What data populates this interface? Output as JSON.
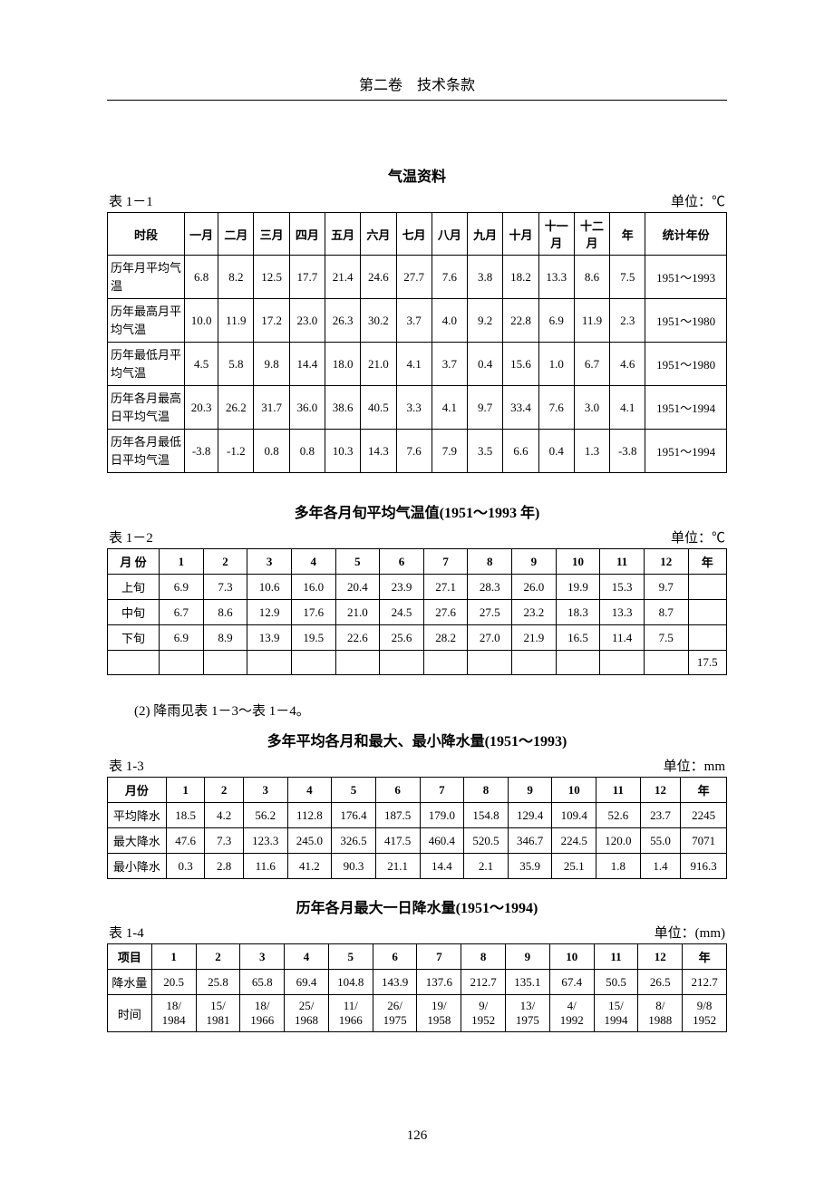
{
  "header": {
    "title": "第二卷　技术条款"
  },
  "page_number": "126",
  "section1": {
    "title": "气温资料",
    "table_label": "表 1－1",
    "unit": "单位：℃",
    "columns": [
      "时段",
      "一月",
      "二月",
      "三月",
      "四月",
      "五月",
      "六月",
      "七月",
      "八月",
      "九月",
      "十月",
      "十一月",
      "十二月",
      "年",
      "统计年份"
    ],
    "rows": [
      {
        "head": "历年月平均气温",
        "cells": [
          "6.8",
          "8.2",
          "12.5",
          "17.7",
          "21.4",
          "24.6",
          "27.7",
          "7.6",
          "3.8",
          "18.2",
          "13.3",
          "8.6",
          "7.5",
          "1951～1993"
        ]
      },
      {
        "head": "历年最高月平均气温",
        "cells": [
          "10.0",
          "11.9",
          "17.2",
          "23.0",
          "26.3",
          "30.2",
          "3.7",
          "4.0",
          "9.2",
          "22.8",
          "6.9",
          "11.9",
          "2.3",
          "1951～1980"
        ]
      },
      {
        "head": "历年最低月平均气温",
        "cells": [
          "4.5",
          "5.8",
          "9.8",
          "14.4",
          "18.0",
          "21.0",
          "4.1",
          "3.7",
          "0.4",
          "15.6",
          "1.0",
          "6.7",
          "4.6",
          "1951～1980"
        ]
      },
      {
        "head": "历年各月最高日平均气温",
        "cells": [
          "20.3",
          "26.2",
          "31.7",
          "36.0",
          "38.6",
          "40.5",
          "3.3",
          "4.1",
          "9.7",
          "33.4",
          "7.6",
          "3.0",
          "4.1",
          "1951～1994"
        ]
      },
      {
        "head": "历年各月最低日平均气温",
        "cells": [
          "-3.8",
          "-1.2",
          "0.8",
          "0.8",
          "10.3",
          "14.3",
          "7.6",
          "7.9",
          "3.5",
          "6.6",
          "0.4",
          "1.3",
          "-3.8",
          "1951～1994"
        ]
      }
    ]
  },
  "section2": {
    "title": "多年各月旬平均气温值(1951～1993 年)",
    "table_label": "表 1－2",
    "unit": "单位：℃",
    "columns": [
      "月 份",
      "1",
      "2",
      "3",
      "4",
      "5",
      "6",
      "7",
      "8",
      "9",
      "10",
      "11",
      "12",
      "年"
    ],
    "rows": [
      {
        "head": "上旬",
        "cells": [
          "6.9",
          "7.3",
          "10.6",
          "16.0",
          "20.4",
          "23.9",
          "27.1",
          "28.3",
          "26.0",
          "19.9",
          "15.3",
          "9.7",
          ""
        ]
      },
      {
        "head": "中旬",
        "cells": [
          "6.7",
          "8.6",
          "12.9",
          "17.6",
          "21.0",
          "24.5",
          "27.6",
          "27.5",
          "23.2",
          "18.3",
          "13.3",
          "8.7",
          ""
        ]
      },
      {
        "head": "下旬",
        "cells": [
          "6.9",
          "8.9",
          "13.9",
          "19.5",
          "22.6",
          "25.6",
          "28.2",
          "27.0",
          "21.9",
          "16.5",
          "11.4",
          "7.5",
          ""
        ]
      },
      {
        "head": "",
        "cells": [
          "",
          "",
          "",
          "",
          "",
          "",
          "",
          "",
          "",
          "",
          "",
          "",
          "17.5"
        ]
      }
    ]
  },
  "body_text": "(2)  降雨见表 1－3～表 1－4。",
  "section3": {
    "title": "多年平均各月和最大、最小降水量(1951～1993)",
    "table_label": "表 1-3",
    "unit": "单位：mm",
    "columns": [
      "月份",
      "1",
      "2",
      "3",
      "4",
      "5",
      "6",
      "7",
      "8",
      "9",
      "10",
      "11",
      "12",
      "年"
    ],
    "rows": [
      {
        "head": "平均降水",
        "cells": [
          "18.5",
          "4.2",
          "56.2",
          "112.8",
          "176.4",
          "187.5",
          "179.0",
          "154.8",
          "129.4",
          "109.4",
          "52.6",
          "23.7",
          "2245"
        ]
      },
      {
        "head": "最大降水",
        "cells": [
          "47.6",
          "7.3",
          "123.3",
          "245.0",
          "326.5",
          "417.5",
          "460.4",
          "520.5",
          "346.7",
          "224.5",
          "120.0",
          "55.0",
          "7071"
        ]
      },
      {
        "head": "最小降水",
        "cells": [
          "0.3",
          "2.8",
          "11.6",
          "41.2",
          "90.3",
          "21.1",
          "14.4",
          "2.1",
          "35.9",
          "25.1",
          "1.8",
          "1.4",
          "916.3"
        ]
      }
    ]
  },
  "section4": {
    "title": "历年各月最大一日降水量(1951～1994)",
    "table_label": "表 1-4",
    "unit": "单位：(mm)",
    "columns": [
      "项目",
      "1",
      "2",
      "3",
      "4",
      "5",
      "6",
      "7",
      "8",
      "9",
      "10",
      "11",
      "12",
      "年"
    ],
    "rows": [
      {
        "head": "降水量",
        "cells": [
          "20.5",
          "25.8",
          "65.8",
          "69.4",
          "104.8",
          "143.9",
          "137.6",
          "212.7",
          "135.1",
          "67.4",
          "50.5",
          "26.5",
          "212.7"
        ]
      },
      {
        "head": "时间",
        "cells": [
          "18/\n1984",
          "15/\n1981",
          "18/\n1966",
          "25/\n1968",
          "11/\n1966",
          "26/\n1975",
          "19/\n1958",
          "9/\n1952",
          "13/\n1975",
          "4/\n1992",
          "15/\n1994",
          "8/\n1988",
          "9/8\n1952"
        ]
      }
    ]
  },
  "style": {
    "t1_col_widths": [
      "78px",
      "34px",
      "36px",
      "36px",
      "36px",
      "36px",
      "36px",
      "36px",
      "36px",
      "36px",
      "36px",
      "36px",
      "36px",
      "36px",
      "82px"
    ],
    "t2_col_widths": [
      "54px",
      "46px",
      "46px",
      "46px",
      "46px",
      "46px",
      "46px",
      "46px",
      "46px",
      "46px",
      "46px",
      "46px",
      "46px",
      "40px"
    ],
    "t3_col_widths": [
      "64px",
      "42px",
      "42px",
      "48px",
      "48px",
      "48px",
      "48px",
      "48px",
      "48px",
      "48px",
      "48px",
      "48px",
      "44px",
      "50px"
    ],
    "t4_col_widths": [
      "48px",
      "48px",
      "48px",
      "48px",
      "48px",
      "48px",
      "48px",
      "48px",
      "48px",
      "48px",
      "48px",
      "48px",
      "48px",
      "48px"
    ]
  }
}
